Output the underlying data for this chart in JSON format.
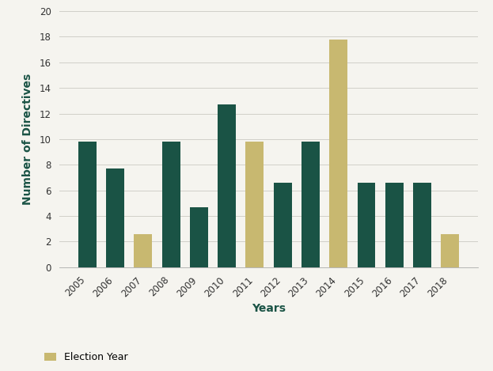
{
  "years": [
    2005,
    2006,
    2007,
    2008,
    2009,
    2010,
    2011,
    2012,
    2013,
    2014,
    2015,
    2016,
    2017,
    2018
  ],
  "values": [
    9.8,
    7.7,
    2.6,
    9.8,
    4.7,
    12.7,
    9.8,
    6.6,
    9.8,
    17.8,
    6.6,
    6.6,
    6.6,
    2.6
  ],
  "election_years": [
    2007,
    2011,
    2014,
    2018
  ],
  "dark_green": "#1a5345",
  "tan_gold": "#c8b870",
  "background_color": "#f5f4ef",
  "ylabel": "Number of Directives",
  "xlabel": "Years",
  "ylim": [
    0,
    20
  ],
  "yticks": [
    0,
    2,
    4,
    6,
    8,
    10,
    12,
    14,
    16,
    18,
    20
  ],
  "legend_label": "Election Year",
  "axis_label_fontsize": 10,
  "tick_fontsize": 8.5,
  "legend_fontsize": 9,
  "bar_width": 0.65
}
